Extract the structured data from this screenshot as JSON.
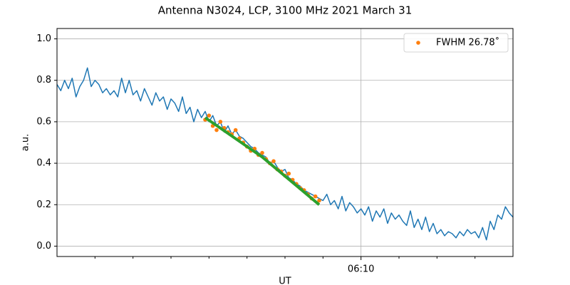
{
  "chart_data": {
    "type": "line",
    "title": "Antenna N3024, LCP, 3100 MHz 2021 March 31",
    "xlabel": "UT",
    "ylabel": "a.u.",
    "xlim": [
      2,
      14
    ],
    "xticks": [
      {
        "value": 10,
        "label": "06:10"
      }
    ],
    "xminorticks": [
      3,
      4,
      5,
      6,
      7,
      8,
      9,
      11,
      12,
      13
    ],
    "ylim": [
      -0.05,
      1.05
    ],
    "yticks": [
      0.0,
      0.2,
      0.4,
      0.6,
      0.8,
      1.0
    ],
    "grid": true,
    "legend": "upper right",
    "series": [
      {
        "type": "line",
        "color": "#1f77b4",
        "linewidth": 1.5,
        "x": [
          2,
          2.1,
          2.2,
          2.3,
          2.4,
          2.5,
          2.6,
          2.7,
          2.8,
          2.9,
          3,
          3.1,
          3.2,
          3.3,
          3.4,
          3.5,
          3.6,
          3.7,
          3.8,
          3.9,
          4,
          4.1,
          4.2,
          4.3,
          4.4,
          4.5,
          4.6,
          4.7,
          4.8,
          4.9,
          5,
          5.1,
          5.2,
          5.3,
          5.4,
          5.5,
          5.6,
          5.7,
          5.8,
          5.9,
          6,
          6.1,
          6.2,
          6.3,
          6.4,
          6.5,
          6.6,
          6.7,
          6.8,
          6.9,
          7,
          7.1,
          7.2,
          7.3,
          7.4,
          7.5,
          7.6,
          7.7,
          7.8,
          7.9,
          8,
          8.1,
          8.2,
          8.3,
          8.4,
          8.5,
          8.6,
          8.7,
          8.8,
          8.9,
          9,
          9.1,
          9.2,
          9.3,
          9.4,
          9.5,
          9.6,
          9.7,
          9.8,
          9.9,
          10,
          10.1,
          10.2,
          10.3,
          10.4,
          10.5,
          10.6,
          10.7,
          10.8,
          10.9,
          11,
          11.1,
          11.2,
          11.3,
          11.4,
          11.5,
          11.6,
          11.7,
          11.8,
          11.9,
          12,
          12.1,
          12.2,
          12.3,
          12.4,
          12.5,
          12.6,
          12.7,
          12.8,
          12.9,
          13,
          13.1,
          13.2,
          13.3,
          13.4,
          13.5,
          13.6,
          13.7,
          13.8,
          13.9,
          14
        ],
        "values": [
          0.78,
          0.75,
          0.8,
          0.76,
          0.81,
          0.72,
          0.77,
          0.8,
          0.86,
          0.77,
          0.8,
          0.78,
          0.74,
          0.76,
          0.73,
          0.75,
          0.72,
          0.81,
          0.74,
          0.8,
          0.73,
          0.75,
          0.7,
          0.76,
          0.72,
          0.68,
          0.74,
          0.7,
          0.72,
          0.66,
          0.71,
          0.69,
          0.65,
          0.72,
          0.64,
          0.67,
          0.6,
          0.66,
          0.62,
          0.65,
          0.6,
          0.63,
          0.58,
          0.6,
          0.55,
          0.58,
          0.54,
          0.56,
          0.53,
          0.52,
          0.5,
          0.48,
          0.47,
          0.45,
          0.44,
          0.43,
          0.4,
          0.41,
          0.38,
          0.36,
          0.37,
          0.33,
          0.32,
          0.3,
          0.29,
          0.27,
          0.26,
          0.25,
          0.24,
          0.23,
          0.22,
          0.25,
          0.2,
          0.22,
          0.18,
          0.24,
          0.17,
          0.21,
          0.19,
          0.16,
          0.18,
          0.15,
          0.19,
          0.12,
          0.17,
          0.14,
          0.18,
          0.11,
          0.16,
          0.13,
          0.15,
          0.12,
          0.1,
          0.17,
          0.09,
          0.13,
          0.08,
          0.14,
          0.07,
          0.11,
          0.06,
          0.08,
          0.05,
          0.07,
          0.06,
          0.04,
          0.07,
          0.05,
          0.08,
          0.06,
          0.07,
          0.04,
          0.09,
          0.03,
          0.12,
          0.08,
          0.15,
          0.13,
          0.19,
          0.16,
          0.14
        ]
      },
      {
        "type": "scatter",
        "name": "FWHM 26.78˚",
        "color": "#ff7f0e",
        "x": [
          5.9,
          6,
          6.1,
          6.2,
          6.3,
          6.4,
          6.5,
          6.6,
          6.7,
          6.8,
          6.9,
          7,
          7.1,
          7.2,
          7.3,
          7.4,
          7.5,
          7.6,
          7.7,
          7.8,
          7.9,
          8,
          8.1,
          8.2,
          8.3,
          8.4,
          8.5,
          8.6,
          8.7,
          8.8,
          8.9
        ],
        "values": [
          0.61,
          0.63,
          0.58,
          0.56,
          0.6,
          0.57,
          0.55,
          0.54,
          0.56,
          0.52,
          0.5,
          0.48,
          0.46,
          0.47,
          0.44,
          0.45,
          0.42,
          0.4,
          0.41,
          0.37,
          0.36,
          0.34,
          0.35,
          0.32,
          0.3,
          0.28,
          0.27,
          0.25,
          0.23,
          0.24,
          0.22
        ]
      },
      {
        "type": "line",
        "color": "#2ca02c",
        "linewidth": 4,
        "x": [
          5.9,
          7.4,
          8.9
        ],
        "values": [
          0.62,
          0.43,
          0.2
        ]
      }
    ]
  }
}
